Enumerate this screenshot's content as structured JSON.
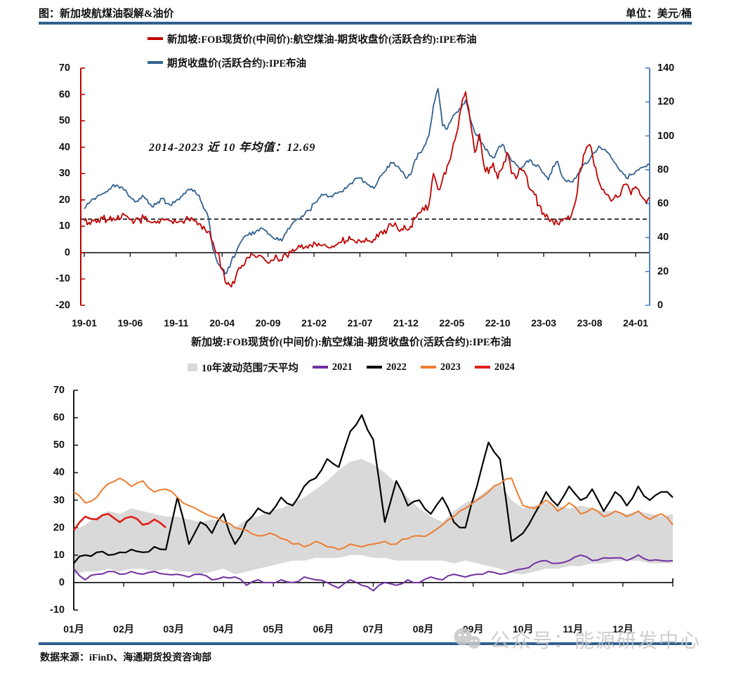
{
  "header": {
    "title": "图：新加坡航煤油裂解&油价",
    "unit_label": "单位：美元/桶"
  },
  "footer": {
    "source": "数据来源：iFinD、海通期货投资咨询部"
  },
  "watermark": {
    "label": "公众号：能源研发中心",
    "icon": "wechat-icon"
  },
  "colors": {
    "divider": "#30618e",
    "crack_red": "#c00000",
    "brent_blue": "#33628f",
    "right_spine_blue": "#4f81bd",
    "axis_black": "#1a1a1a",
    "band_gray": "#d9d9d9",
    "y2021": "#7030a0",
    "y2022": "#000000",
    "y2023": "#ed7d31",
    "y2024": "#e02018",
    "watermark_gray": "#c6c6c6"
  },
  "chart_data": [
    {
      "type": "line",
      "dual_axis": true,
      "legend": [
        {
          "label": "新加坡:FOB现货价(中间价):航空煤油-期货收盘价(活跃合约):IPE布油",
          "color_key": "crack_red"
        },
        {
          "label": "期货收盘价(活跃合约):IPE布油",
          "color_key": "brent_blue"
        }
      ],
      "annotation": "2014-2023 近 10 年均值：12.69",
      "mean_line_value": 12.69,
      "left_axis": {
        "min": -20,
        "max": 70,
        "ticks": [
          70,
          60,
          50,
          40,
          30,
          20,
          10,
          0,
          -10,
          -20
        ]
      },
      "right_axis": {
        "min": 0,
        "max": 140,
        "ticks": [
          140,
          120,
          100,
          80,
          60,
          40,
          20,
          0
        ]
      },
      "x_ticks": [
        {
          "label": "19-01",
          "month": 0
        },
        {
          "label": "19-06",
          "month": 5
        },
        {
          "label": "19-11",
          "month": 10
        },
        {
          "label": "20-04",
          "month": 15
        },
        {
          "label": "20-09",
          "month": 20
        },
        {
          "label": "21-02",
          "month": 25
        },
        {
          "label": "21-07",
          "month": 30
        },
        {
          "label": "21-12",
          "month": 35
        },
        {
          "label": "22-05",
          "month": 40
        },
        {
          "label": "22-10",
          "month": 45
        },
        {
          "label": "23-03",
          "month": 50
        },
        {
          "label": "23-08",
          "month": 55
        },
        {
          "label": "24-01",
          "month": 60
        }
      ],
      "x_unit": "months since 2019-01, values sampled every 0.5 month",
      "series": [
        {
          "name": "新加坡:FOB现货价(中间价):航空煤油-期货收盘价(活跃合约):IPE布油",
          "axis": "left",
          "color_key": "crack_red",
          "step_months": 0.5,
          "jitter": 1.6,
          "values": [
            12,
            11.5,
            12,
            12.5,
            13,
            12.5,
            12,
            12.5,
            13,
            14,
            12.5,
            12,
            12.5,
            13,
            12,
            11.5,
            12,
            13,
            12.5,
            12,
            11.5,
            12,
            12.5,
            12,
            12,
            11,
            10,
            8,
            4,
            0,
            -6,
            -12,
            -13,
            -9,
            -6,
            -4,
            -2,
            -1,
            -1,
            -2,
            -4,
            -3,
            -2,
            -3,
            -1,
            0,
            1,
            2,
            2,
            3,
            4,
            3.5,
            3,
            2,
            2.5,
            3,
            4,
            4.5,
            5,
            4,
            4.5,
            4,
            4.5,
            5,
            6,
            7,
            9,
            10,
            10,
            9,
            9,
            10,
            13,
            15,
            16,
            18,
            30,
            24,
            28,
            33,
            38,
            45,
            55,
            61,
            50,
            38,
            45,
            33,
            30,
            34,
            28,
            32,
            38,
            30,
            28,
            32,
            30,
            24,
            22,
            18,
            15,
            13,
            12,
            11,
            12,
            13,
            14,
            20,
            32,
            38,
            41,
            33,
            27,
            24,
            22,
            20,
            21,
            24,
            26,
            22,
            25,
            22,
            20,
            21
          ]
        },
        {
          "name": "期货收盘价(活跃合约):IPE布油",
          "axis": "right",
          "color_key": "brent_blue",
          "step_months": 0.5,
          "jitter": 1.3,
          "values": [
            57,
            60,
            63,
            65,
            66,
            67,
            70,
            71,
            70,
            68,
            64,
            61,
            63,
            64,
            60,
            58,
            61,
            63,
            60,
            59,
            62,
            64,
            66,
            68,
            68,
            65,
            57,
            52,
            33,
            25,
            21,
            19,
            26,
            31,
            37,
            41,
            43,
            42,
            44,
            45,
            42,
            40,
            40,
            38,
            43,
            47,
            50,
            51,
            54,
            56,
            60,
            63,
            65,
            64,
            64,
            66,
            67,
            69,
            72,
            75,
            75,
            73,
            71,
            69,
            74,
            78,
            82,
            84,
            82,
            79,
            75,
            77,
            86,
            90,
            94,
            100,
            118,
            128,
            106,
            104,
            110,
            114,
            116,
            121,
            110,
            102,
            98,
            94,
            90,
            87,
            92,
            95,
            90,
            85,
            83,
            80,
            84,
            86,
            83,
            82,
            78,
            74,
            82,
            85,
            76,
            73,
            73,
            75,
            79,
            84,
            86,
            90,
            94,
            92,
            90,
            86,
            82,
            79,
            75,
            77,
            79,
            81,
            82,
            83
          ]
        }
      ]
    },
    {
      "type": "line",
      "title": "新加坡:FOB现货价(中间价):航空煤油-期货收盘价(活跃合约):IPE布油",
      "legend": [
        {
          "label": "10年波动范围7天平均",
          "color_key": "band_gray",
          "swatch": "box"
        },
        {
          "label": "2021",
          "color_key": "y2021",
          "swatch": "dash"
        },
        {
          "label": "2022",
          "color_key": "y2022",
          "swatch": "dash"
        },
        {
          "label": "2023",
          "color_key": "y2023",
          "swatch": "dash"
        },
        {
          "label": "2024",
          "color_key": "y2024",
          "swatch": "dash"
        }
      ],
      "y_axis": {
        "min": -10,
        "max": 70,
        "ticks": [
          70,
          60,
          50,
          40,
          30,
          20,
          10,
          0,
          -10
        ]
      },
      "x_tick_labels": [
        "01月",
        "02月",
        "03月",
        "04月",
        "05月",
        "06月",
        "07月",
        "08月",
        "09月",
        "10月",
        "11月",
        "12月"
      ],
      "x_unit": "weeks of the year (0-52), plotted over 12 months",
      "band": {
        "name": "10年波动范围7天平均",
        "color_key": "band_gray",
        "step_weeks": 1,
        "lower": [
          3,
          4,
          4,
          5,
          4,
          5,
          5,
          4,
          5,
          4,
          4,
          3,
          4,
          5,
          3,
          4,
          5,
          6,
          7,
          8,
          8,
          9,
          9,
          9,
          10,
          10,
          9,
          9,
          8,
          8,
          8,
          8,
          8,
          7,
          8,
          7,
          6,
          5,
          3.5,
          3,
          4,
          5,
          5,
          6,
          6,
          7,
          7,
          8,
          8,
          8,
          7,
          7,
          7
        ],
        "upper": [
          19,
          21,
          24,
          26,
          25,
          27,
          26,
          25,
          24,
          24,
          23,
          22,
          23,
          22,
          20,
          23,
          24,
          26,
          27,
          29,
          31,
          34,
          37,
          41,
          44,
          45,
          43,
          40,
          36,
          31,
          27,
          24,
          22,
          26,
          29,
          31,
          34,
          36,
          30,
          27,
          28,
          29,
          28,
          27,
          28,
          27,
          26,
          26,
          25,
          26,
          25,
          24,
          25
        ]
      },
      "series": [
        {
          "name": "2021",
          "color_key": "y2021",
          "step_weeks": 1,
          "jitter": 0.6,
          "values": [
            5,
            1,
            3,
            4,
            3,
            4,
            3,
            4,
            3,
            3,
            2,
            3,
            1,
            2,
            2,
            -1,
            1,
            0,
            1,
            0,
            2,
            1,
            0,
            -2,
            1,
            -1,
            -3,
            0,
            -1,
            1,
            0,
            2,
            1,
            3,
            2,
            3,
            4,
            3,
            4,
            5,
            7,
            8,
            7,
            8,
            10,
            8,
            9,
            9,
            8,
            10,
            8,
            8,
            8
          ]
        },
        {
          "name": "2022",
          "color_key": "y2022",
          "step_weeks": 1,
          "jitter": 1.1,
          "values": [
            7,
            10,
            11,
            10,
            11,
            12,
            11,
            13,
            12,
            31,
            14,
            22,
            18,
            25,
            14,
            22,
            27,
            25,
            31,
            28,
            35,
            38,
            45,
            42,
            55,
            61,
            52,
            22,
            37,
            28,
            30,
            25,
            31,
            22,
            20,
            35,
            51,
            45,
            15,
            18,
            25,
            33,
            28,
            35,
            30,
            34,
            26,
            33,
            28,
            35,
            30,
            33,
            31
          ]
        },
        {
          "name": "2023",
          "color_key": "y2023",
          "step_weeks": 1,
          "jitter": 0.7,
          "values": [
            33,
            29,
            31,
            36,
            38,
            35,
            37,
            33,
            34,
            31,
            28,
            26,
            24,
            22,
            20,
            19,
            17,
            18,
            16,
            14,
            13,
            15,
            13,
            12,
            14,
            13,
            14,
            15,
            14,
            16,
            17,
            18,
            21,
            24,
            27,
            30,
            33,
            36,
            38,
            28,
            27,
            30,
            26,
            29,
            25,
            27,
            24,
            26,
            24,
            26,
            23,
            25,
            21
          ]
        },
        {
          "name": "2024",
          "color_key": "y2024",
          "step_weeks": 1,
          "jitter": 0.8,
          "values": [
            19,
            24,
            23,
            25,
            22,
            24,
            21,
            23,
            20
          ]
        }
      ]
    }
  ]
}
